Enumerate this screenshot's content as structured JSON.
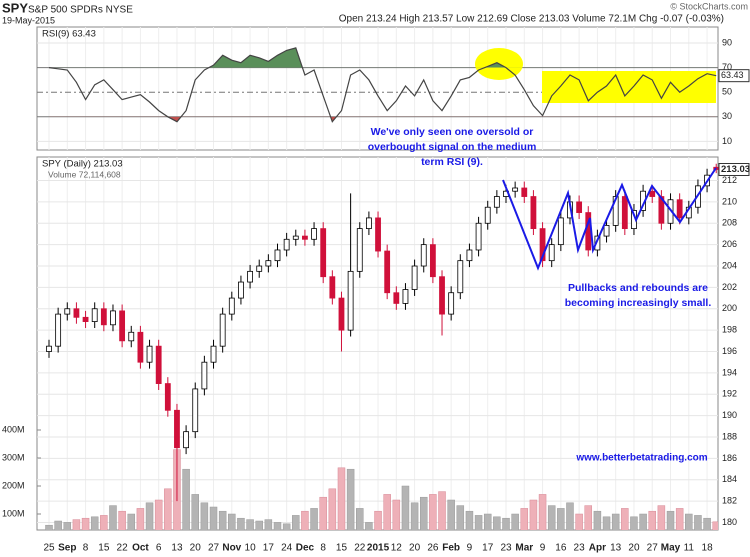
{
  "header": {
    "symbol": "SPY",
    "name": "S&P 500 SPDRs NYSE",
    "date": "19-May-2015",
    "source": "© StockCharts.com",
    "quote": "Open 213.24 High 213.57 Low 212.69 Close 213.03 Volume 72.1M Chg -0.07 (-0.03%)"
  },
  "chart_data": [
    {
      "type": "line",
      "title": "RSI(9) 63.43",
      "values": [
        70,
        69,
        68,
        58,
        44,
        56,
        60,
        52,
        44,
        46,
        48,
        42,
        35,
        30,
        26,
        35,
        60,
        68,
        72,
        80,
        76,
        74,
        80,
        78,
        75,
        80,
        84,
        86,
        64,
        68,
        47,
        26,
        35,
        64,
        68,
        60,
        47,
        35,
        43,
        55,
        47,
        60,
        43,
        35,
        47,
        60,
        62,
        68,
        71,
        74,
        70,
        64,
        52,
        39,
        31,
        47,
        55,
        64,
        60,
        43,
        50,
        55,
        64,
        47,
        55,
        64,
        60,
        45,
        58,
        50,
        55,
        61,
        65,
        63.43
      ],
      "color": "#444444",
      "ylim": [
        3,
        103
      ],
      "yticks": [
        10,
        30,
        50,
        70,
        90
      ],
      "bands": [
        30,
        70
      ],
      "centerline": 50,
      "overbought_color": "#5a8f5a",
      "oversold_color": "#c0504d",
      "annotations": [
        "We've only seen one oversold or",
        "overbought signal on the medium",
        "term RSI (9)."
      ]
    },
    {
      "type": "candlestick",
      "title": "SPY (Daily) 213.03",
      "volume_title": "Volume 72,114,608",
      "categories": [
        "25",
        null,
        "Sep",
        null,
        "8",
        null,
        "15",
        null,
        "22",
        null,
        "Oct",
        null,
        "6",
        null,
        "13",
        null,
        "20",
        null,
        "27",
        null,
        "Nov",
        null,
        "10",
        null,
        "17",
        null,
        "24",
        null,
        "Dec",
        null,
        "8",
        null,
        "15",
        null,
        "22",
        null,
        "2015",
        null,
        "12",
        null,
        "20",
        null,
        "26",
        null,
        "Feb",
        null,
        "9",
        null,
        "17",
        null,
        "23",
        null,
        "Mar",
        null,
        "9",
        null,
        "16",
        null,
        "23",
        null,
        "Apr",
        null,
        "13",
        null,
        "20",
        null,
        "27",
        null,
        "May",
        null,
        "11",
        null,
        "18",
        null
      ],
      "open": [
        196,
        196.5,
        199.5,
        200,
        199.2,
        198.8,
        200,
        198.5,
        199.8,
        197,
        197.8,
        195,
        196.5,
        193,
        190.5,
        187,
        188.5,
        192.5,
        195,
        196.5,
        199.5,
        201,
        202.5,
        203.5,
        204,
        204.5,
        205.5,
        206.5,
        206.8,
        206.5,
        207.5,
        203,
        201,
        198,
        203.5,
        207.5,
        208.5,
        205.4,
        201.5,
        200.5,
        201.8,
        204,
        206,
        203,
        199.5,
        201.5,
        204.5,
        205.5,
        208,
        209.5,
        210.5,
        211,
        211.3,
        210.5,
        207.5,
        204.5,
        206,
        208.5,
        210,
        209,
        205.5,
        206.8,
        207.8,
        210.5,
        207.5,
        209.2,
        211,
        210.5,
        208,
        210.2,
        208.5,
        209.5,
        211.5,
        213.24
      ],
      "high": [
        197.1,
        200.1,
        200.6,
        200.6,
        199.8,
        200.6,
        200.6,
        200.4,
        200.4,
        198.4,
        198.4,
        197.1,
        197.1,
        193.6,
        191.1,
        189.1,
        193.1,
        195.6,
        197.1,
        200.1,
        201.6,
        203.1,
        204.1,
        204.6,
        205.1,
        206.1,
        207.1,
        207.4,
        207.4,
        208.1,
        208.1,
        203.6,
        201.6,
        210.8,
        208.1,
        209.1,
        209.1,
        206,
        202.1,
        202.4,
        204.6,
        206.6,
        206.6,
        203.6,
        202.1,
        205.1,
        206.1,
        208.6,
        210.1,
        211.1,
        211.6,
        211.9,
        211.9,
        211.1,
        208.1,
        206.6,
        209.1,
        210.6,
        210.6,
        209.6,
        207.4,
        208.4,
        211.1,
        211.1,
        209.8,
        211.6,
        211.6,
        211.1,
        210.8,
        210.8,
        210.1,
        212.1,
        213.1,
        213.57
      ],
      "low": [
        195.4,
        195.9,
        198.9,
        198.6,
        198.2,
        198.2,
        197.9,
        197.9,
        196.4,
        196.4,
        194.4,
        194.4,
        192.4,
        189.9,
        182,
        186.4,
        187.9,
        191.9,
        194.4,
        195.9,
        198.9,
        200.4,
        201.9,
        202.9,
        203.4,
        203.9,
        204.9,
        205.9,
        205.9,
        205.9,
        202.4,
        200.4,
        196,
        197.4,
        202.9,
        206.9,
        204.8,
        200.9,
        199.9,
        199.9,
        201.2,
        203.4,
        202.4,
        197.5,
        198.9,
        200.9,
        203.9,
        204.9,
        207.4,
        208.9,
        209.9,
        210.4,
        209.9,
        206.9,
        203.9,
        203.9,
        205.4,
        207.9,
        208.4,
        204.9,
        204.9,
        206.2,
        207.2,
        206.9,
        206.9,
        208.6,
        209.9,
        207.4,
        207.4,
        207.9,
        207.9,
        208.9,
        210.9,
        212.69
      ],
      "close": [
        196.5,
        199.5,
        200,
        199.2,
        198.8,
        200,
        198.5,
        199.8,
        197,
        197.8,
        195,
        196.5,
        193,
        190.5,
        187,
        188.5,
        192.5,
        195,
        196.5,
        199.5,
        201,
        202.5,
        203.5,
        204,
        204.5,
        205.5,
        206.5,
        206.8,
        206.5,
        207.5,
        203,
        201,
        198,
        203.5,
        207.5,
        208.5,
        205.4,
        201.5,
        200.5,
        201.8,
        204,
        206,
        203,
        199.5,
        201.5,
        204.5,
        205.5,
        208,
        209.5,
        210.5,
        211,
        211.3,
        210.5,
        207.5,
        204.5,
        206,
        208.5,
        210,
        209,
        205.5,
        206.8,
        207.8,
        210.5,
        207.5,
        209.2,
        211,
        210.5,
        208,
        210.2,
        208.5,
        209.5,
        211.5,
        212.5,
        213.03
      ],
      "volume": [
        60000000,
        75000000,
        70000000,
        80000000,
        85000000,
        90000000,
        95000000,
        130000000,
        110000000,
        100000000,
        120000000,
        140000000,
        150000000,
        190000000,
        330000000,
        260000000,
        170000000,
        140000000,
        125000000,
        110000000,
        100000000,
        85000000,
        80000000,
        75000000,
        80000000,
        70000000,
        65000000,
        95000000,
        110000000,
        120000000,
        160000000,
        190000000,
        265000000,
        260000000,
        120000000,
        70000000,
        110000000,
        170000000,
        150000000,
        200000000,
        140000000,
        160000000,
        170000000,
        180000000,
        150000000,
        130000000,
        110000000,
        95000000,
        100000000,
        90000000,
        85000000,
        100000000,
        120000000,
        150000000,
        170000000,
        130000000,
        120000000,
        140000000,
        100000000,
        130000000,
        110000000,
        90000000,
        100000000,
        120000000,
        90000000,
        100000000,
        110000000,
        130000000,
        110000000,
        120000000,
        100000000,
        95000000,
        85000000,
        72114608
      ],
      "ylim": [
        179.3,
        214.2
      ],
      "yticks": [
        180,
        182,
        184,
        186,
        188,
        190,
        192,
        194,
        196,
        198,
        200,
        202,
        204,
        206,
        208,
        210,
        212
      ],
      "volume_ylim": [
        0,
        1400000000
      ],
      "volume_ticks": [
        {
          "value": 100000000,
          "label": "100M"
        },
        {
          "value": 200000000,
          "label": "200M"
        },
        {
          "value": 300000000,
          "label": "300M"
        },
        {
          "value": 400000000,
          "label": "400M"
        }
      ],
      "up_color": "#000000",
      "down_color": "#d0103a",
      "volume_up_color": "#b4b4b4",
      "volume_down_color": "#eeb0b8",
      "grid": true,
      "annotations": [
        "Pullbacks and rebounds are",
        "becoming increasingly small."
      ],
      "website": "www.betterbetatrading.com"
    }
  ]
}
